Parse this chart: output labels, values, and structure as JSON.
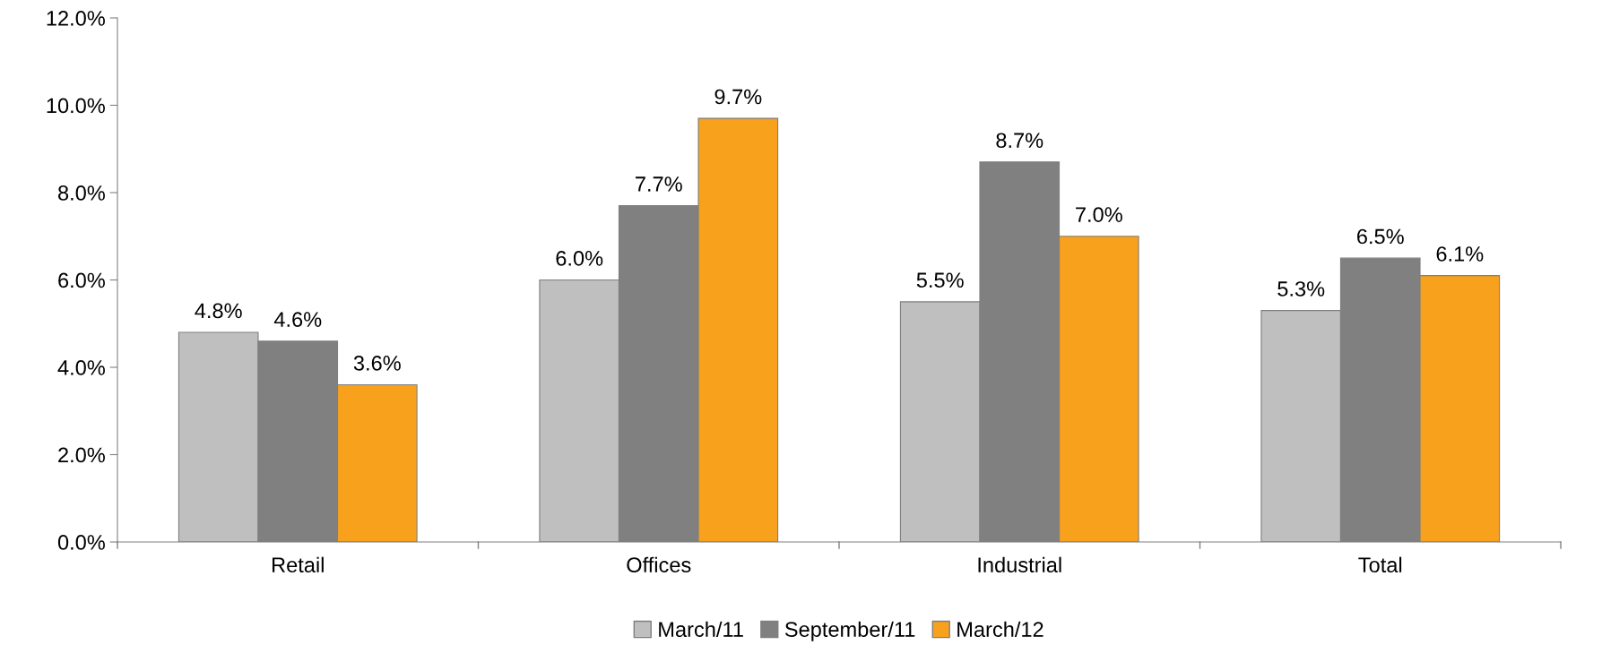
{
  "chart_data": {
    "type": "bar",
    "categories": [
      "Retail",
      "Offices",
      "Industrial",
      "Total"
    ],
    "series": [
      {
        "name": "March/11",
        "color": "#bfbfbf",
        "values": [
          4.8,
          6.0,
          5.5,
          5.3
        ],
        "value_labels": [
          "4.8%",
          "6.0%",
          "5.5%",
          "5.3%"
        ]
      },
      {
        "name": "September/11",
        "color": "#808080",
        "values": [
          4.6,
          7.7,
          8.7,
          6.5
        ],
        "value_labels": [
          "4.6%",
          "7.7%",
          "8.7%",
          "6.5%"
        ]
      },
      {
        "name": "March/12",
        "color": "#f7a11d",
        "values": [
          3.6,
          9.7,
          7.0,
          6.1
        ],
        "value_labels": [
          "3.6%",
          "9.7%",
          "7.0%",
          "6.1%"
        ]
      }
    ],
    "ylim": [
      0,
      12
    ],
    "yticks": [
      {
        "value": 0,
        "label": "0.0%"
      },
      {
        "value": 2,
        "label": "2.0%"
      },
      {
        "value": 4,
        "label": "4.0%"
      },
      {
        "value": 6,
        "label": "6.0%"
      },
      {
        "value": 8,
        "label": "8.0%"
      },
      {
        "value": 10,
        "label": "10.0%"
      },
      {
        "value": 12,
        "label": "12.0%"
      }
    ],
    "grid": false,
    "legend": "bottom"
  }
}
